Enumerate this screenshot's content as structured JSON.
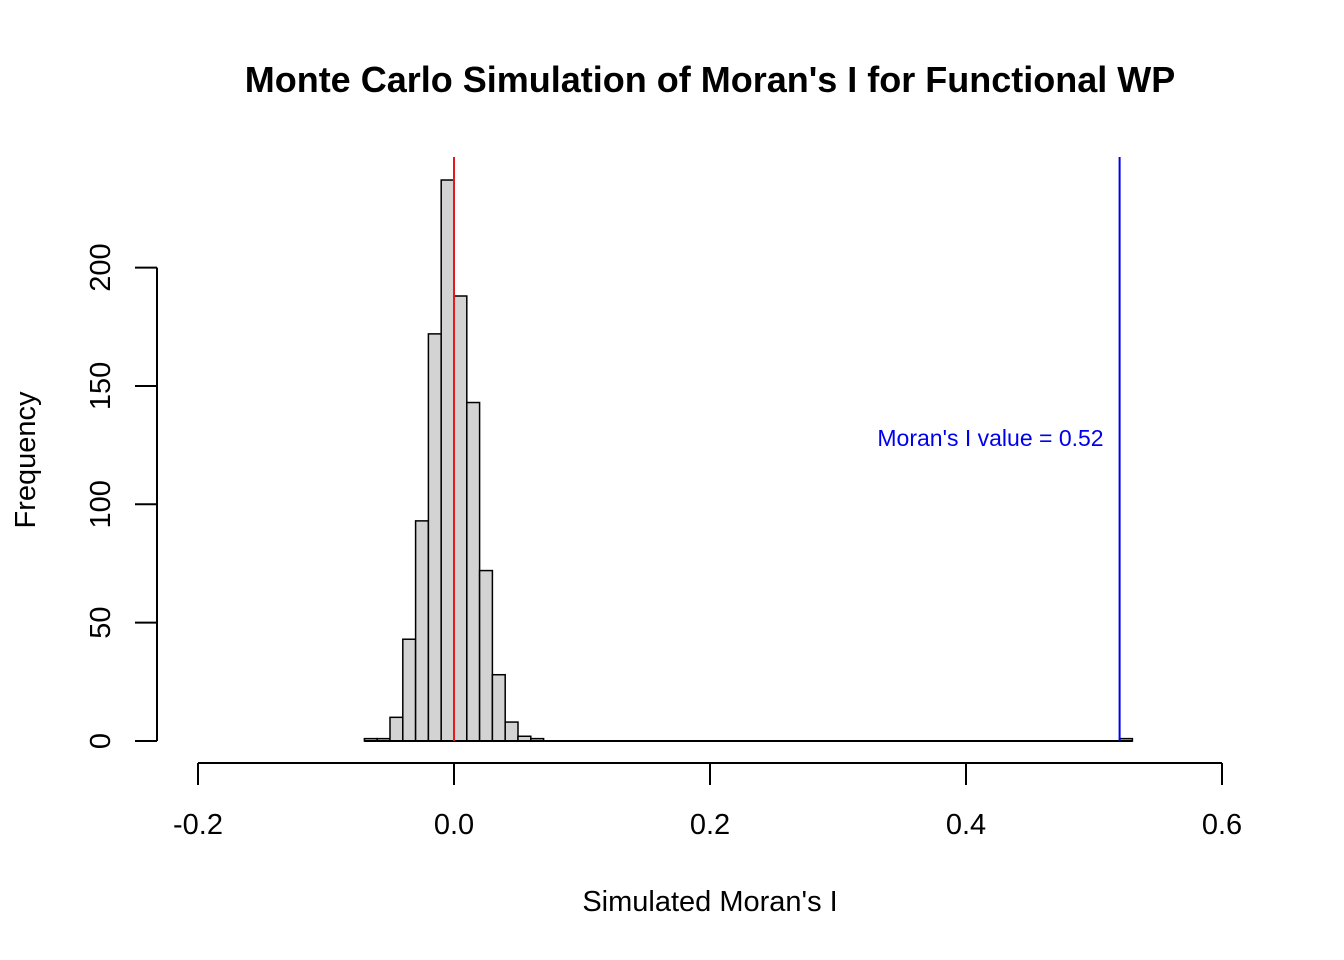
{
  "chart_data": {
    "type": "bar",
    "title": "Monte Carlo Simulation of Moran's I for Functional WP",
    "xlabel": "Simulated Moran's I",
    "ylabel": "Frequency",
    "xlim": [
      -0.2,
      0.6
    ],
    "ylim": [
      0,
      240
    ],
    "x_ticks": [
      "-0.2",
      "0.0",
      "0.2",
      "0.4",
      "0.6"
    ],
    "y_ticks": [
      "0",
      "50",
      "100",
      "150",
      "200"
    ],
    "bin_width": 0.01,
    "bins": [
      {
        "start": -0.07,
        "count": 1
      },
      {
        "start": -0.06,
        "count": 1
      },
      {
        "start": -0.05,
        "count": 10
      },
      {
        "start": -0.04,
        "count": 43
      },
      {
        "start": -0.03,
        "count": 93
      },
      {
        "start": -0.02,
        "count": 172
      },
      {
        "start": -0.01,
        "count": 237
      },
      {
        "start": 0.0,
        "count": 188
      },
      {
        "start": 0.01,
        "count": 143
      },
      {
        "start": 0.02,
        "count": 72
      },
      {
        "start": 0.03,
        "count": 28
      },
      {
        "start": 0.04,
        "count": 8
      },
      {
        "start": 0.05,
        "count": 2
      },
      {
        "start": 0.06,
        "count": 1
      },
      {
        "start": 0.07,
        "count": 0
      },
      {
        "start": 0.52,
        "count": 1
      }
    ],
    "reference_lines": [
      {
        "x": 0.0,
        "color": "#e41a1c"
      },
      {
        "x": 0.52,
        "color": "#0000ee"
      }
    ],
    "annotation": {
      "text": "Moran's I value = 0.52",
      "x": 0.52,
      "y": 128,
      "color": "#0000ee"
    },
    "bar_fill": "#d3d3d3",
    "grid": false,
    "legend": "none"
  }
}
